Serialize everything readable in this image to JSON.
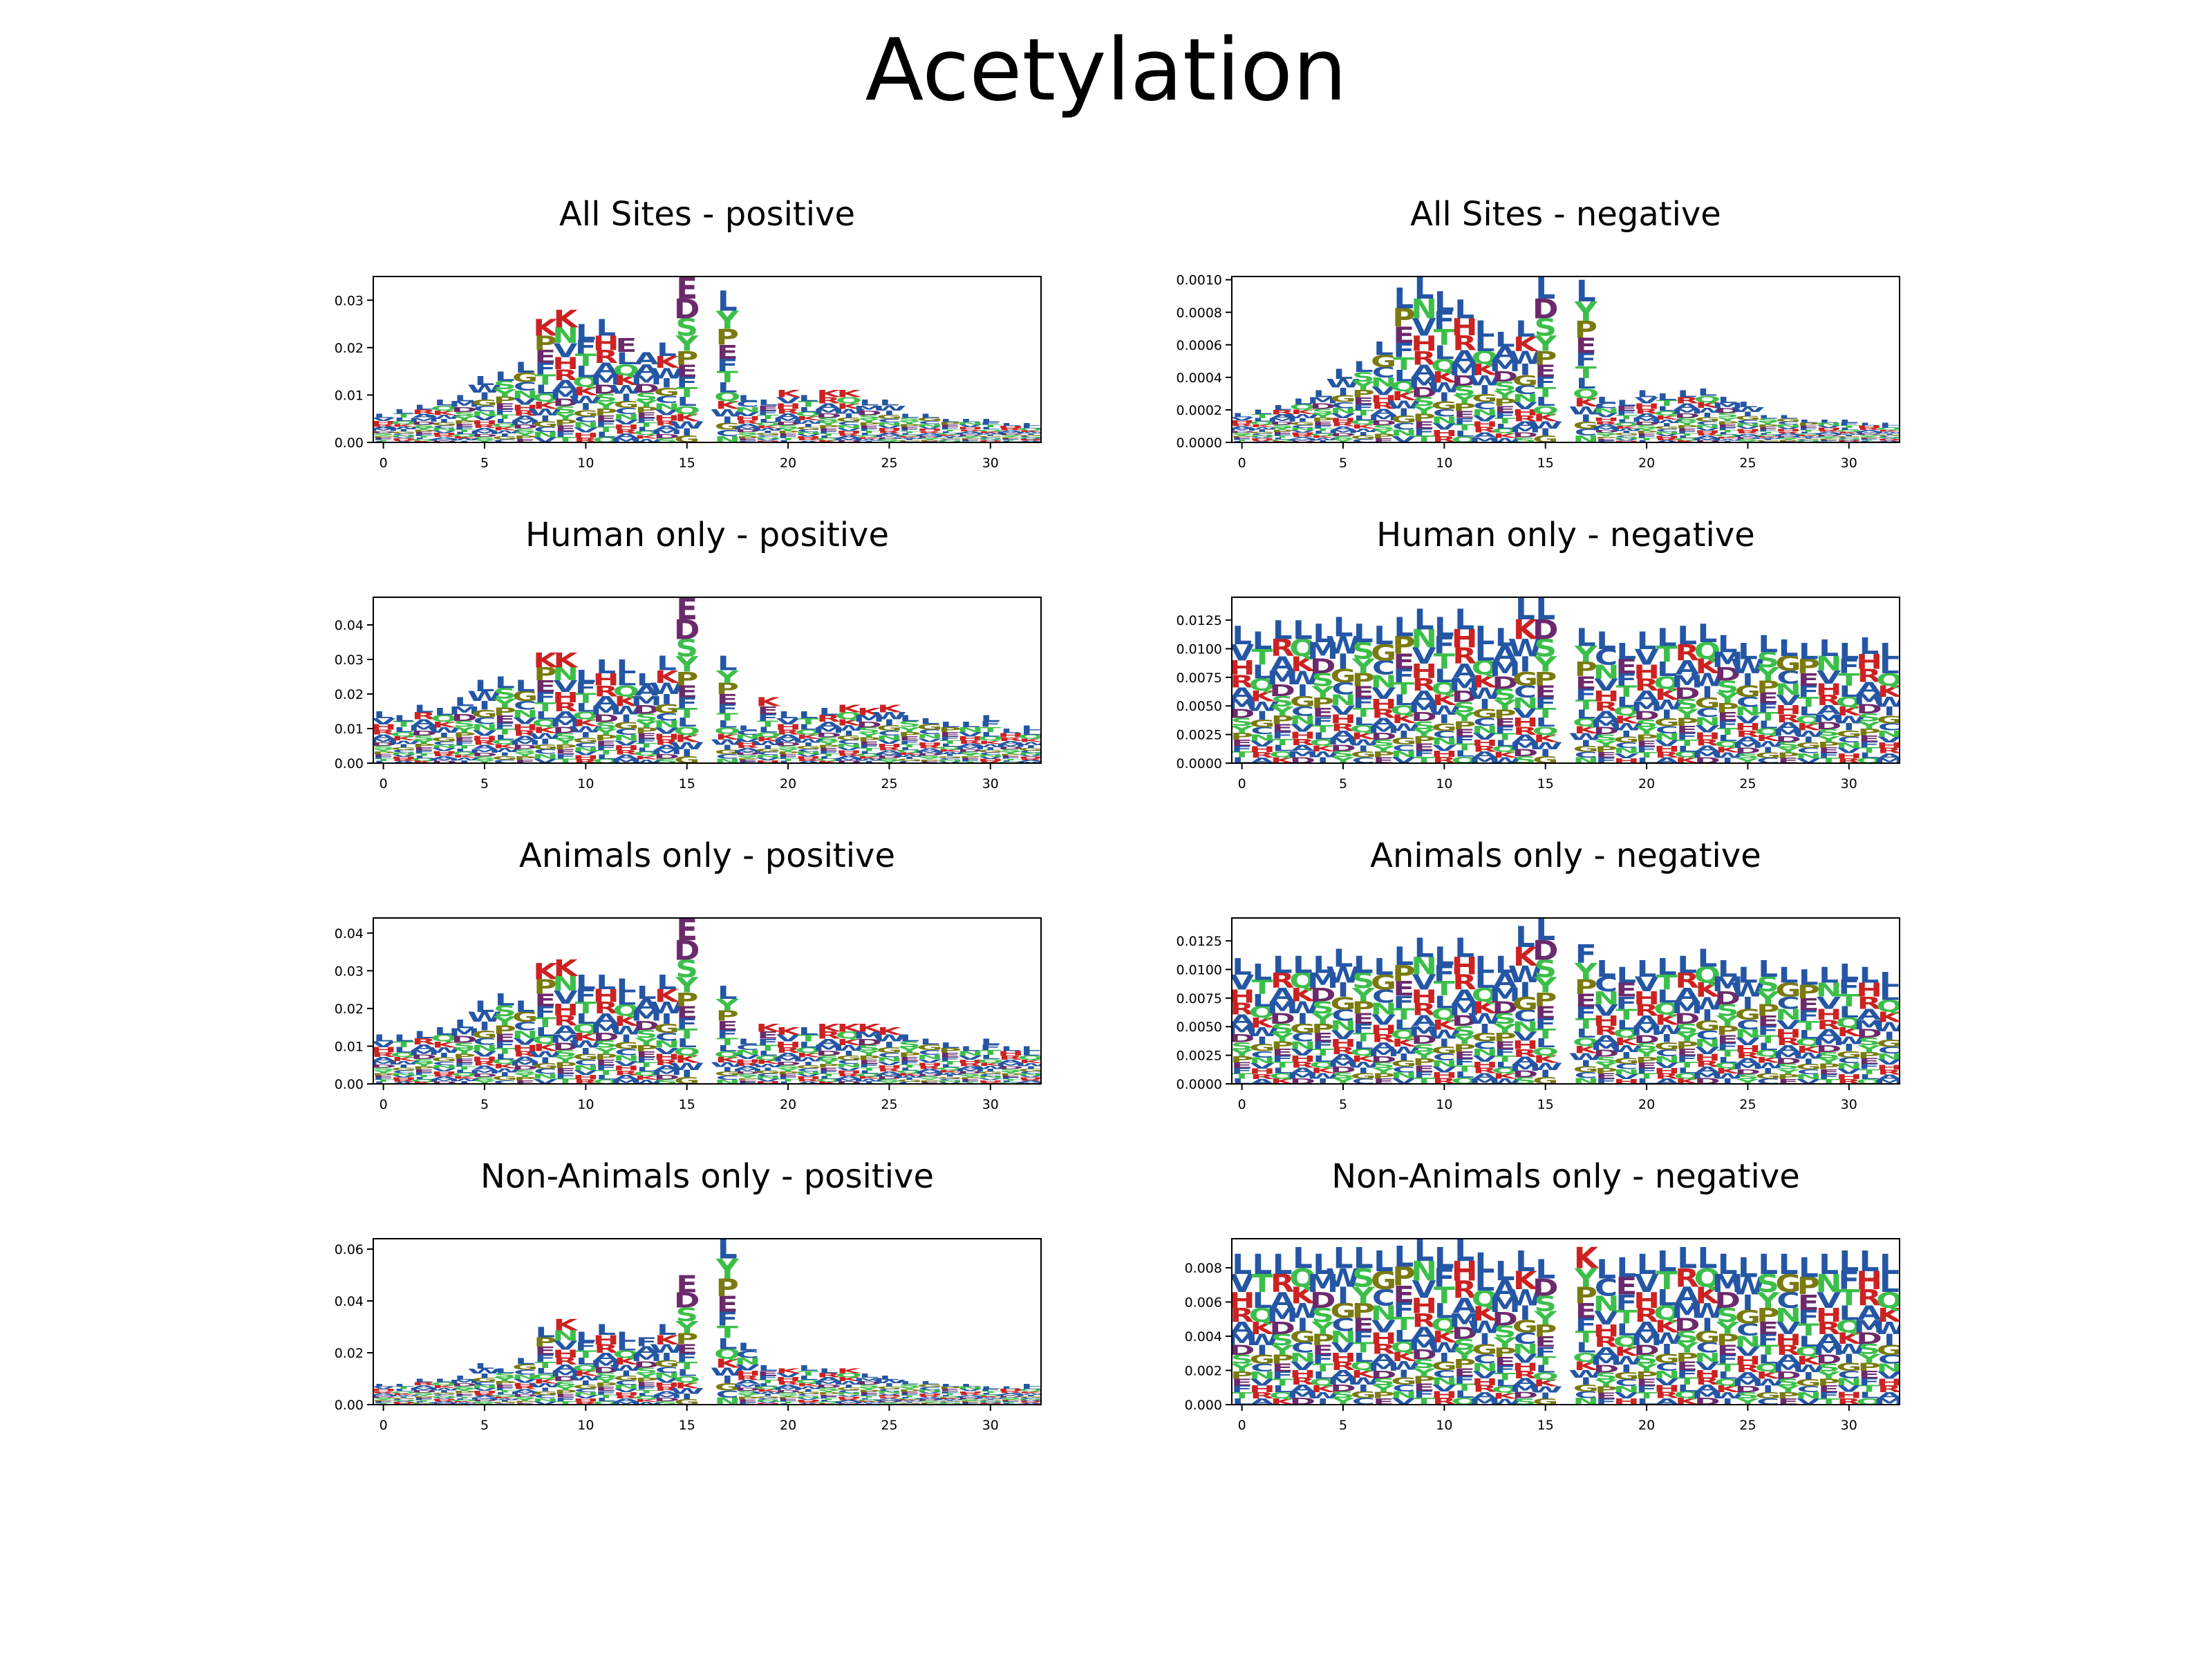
{
  "title": "Acetylation",
  "palette": {
    "K": "#cc2222",
    "R": "#cc2222",
    "H": "#cc2222",
    "D": "#6b2a6b",
    "E": "#6b2a6b",
    "L": "#2456a4",
    "I": "#2456a4",
    "V": "#2456a4",
    "A": "#2456a4",
    "M": "#2456a4",
    "F": "#2456a4",
    "W": "#2456a4",
    "S": "#3cbf4a",
    "T": "#3cbf4a",
    "Y": "#3cbf4a",
    "N": "#3cbf4a",
    "Q": "#3cbf4a",
    "G": "#7a7a10",
    "P": "#7a7a10",
    "C": "#2456a4"
  },
  "chart_data": [
    {
      "type": "bar",
      "subtype": "sequence-logo",
      "title": "All Sites - positive",
      "xlim": [
        -0.5,
        32.5
      ],
      "ylim": [
        0,
        0.035
      ],
      "xticks": [
        "0",
        "5",
        "10",
        "15",
        "20",
        "25",
        "30"
      ],
      "yticks": [
        "0.00",
        "0.01",
        "0.02",
        "0.03"
      ],
      "x": [
        0,
        1,
        2,
        3,
        4,
        5,
        6,
        7,
        8,
        9,
        10,
        11,
        12,
        13,
        14,
        15,
        16,
        17,
        18,
        19,
        20,
        21,
        22,
        23,
        24,
        25,
        26,
        27,
        28,
        29,
        30,
        31,
        32
      ],
      "column_totals": [
        0.006,
        0.007,
        0.008,
        0.009,
        0.01,
        0.014,
        0.015,
        0.017,
        0.026,
        0.028,
        0.025,
        0.026,
        0.022,
        0.019,
        0.021,
        0.035,
        0,
        0.032,
        0.01,
        0.009,
        0.011,
        0.01,
        0.011,
        0.011,
        0.009,
        0.009,
        0.006,
        0.006,
        0.005,
        0.005,
        0.005,
        0.004,
        0.004
      ],
      "top_letters": [
        "L",
        "L",
        "L",
        "L",
        "L",
        "L",
        "L",
        "L",
        "K",
        "K",
        "L",
        "L",
        "E",
        "A",
        "L",
        "E",
        "",
        "L",
        "L",
        "L",
        "K",
        "L",
        "K",
        "K",
        "L",
        "L",
        "L",
        "L",
        "L",
        "L",
        "L",
        "L",
        "L"
      ]
    },
    {
      "type": "bar",
      "subtype": "sequence-logo",
      "title": "All Sites - negative",
      "xlim": [
        -0.5,
        32.5
      ],
      "ylim": [
        0,
        0.00102
      ],
      "xticks": [
        "0",
        "5",
        "10",
        "15",
        "20",
        "25",
        "30"
      ],
      "yticks": [
        "0.0000",
        "0.0002",
        "0.0004",
        "0.0006",
        "0.0008",
        "0.0010"
      ],
      "x": [
        0,
        1,
        2,
        3,
        4,
        5,
        6,
        7,
        8,
        9,
        10,
        11,
        12,
        13,
        14,
        15,
        16,
        17,
        18,
        19,
        20,
        21,
        22,
        23,
        24,
        25,
        26,
        27,
        28,
        29,
        30,
        31,
        32
      ],
      "column_totals": [
        0.00018,
        0.0002,
        0.00023,
        0.00027,
        0.00032,
        0.00045,
        0.0005,
        0.00062,
        0.00095,
        0.00102,
        0.00093,
        0.00088,
        0.00075,
        0.00068,
        0.00075,
        0.00102,
        0,
        0.001,
        0.00028,
        0.00026,
        0.00032,
        0.0003,
        0.00032,
        0.00033,
        0.00028,
        0.00025,
        0.00017,
        0.00017,
        0.00014,
        0.00014,
        0.00014,
        0.00012,
        0.00012
      ],
      "top_letters": [
        "L",
        "L",
        "L",
        "L",
        "L",
        "L",
        "L",
        "L",
        "L",
        "L",
        "L",
        "L",
        "L",
        "L",
        "L",
        "L",
        "",
        "L",
        "L",
        "L",
        "L",
        "L",
        "L",
        "L",
        "L",
        "L",
        "L",
        "L",
        "L",
        "L",
        "L",
        "L",
        "L"
      ]
    },
    {
      "type": "bar",
      "subtype": "sequence-logo",
      "title": "Human only - positive",
      "xlim": [
        -0.5,
        32.5
      ],
      "ylim": [
        0,
        0.048
      ],
      "xticks": [
        "0",
        "5",
        "10",
        "15",
        "20",
        "25",
        "30"
      ],
      "yticks": [
        "0.00",
        "0.01",
        "0.02",
        "0.03",
        "0.04"
      ],
      "x": [
        0,
        1,
        2,
        3,
        4,
        5,
        6,
        7,
        8,
        9,
        10,
        11,
        12,
        13,
        14,
        15,
        16,
        17,
        18,
        19,
        20,
        21,
        22,
        23,
        24,
        25,
        26,
        27,
        28,
        29,
        30,
        31,
        32
      ],
      "column_totals": [
        0.015,
        0.014,
        0.017,
        0.016,
        0.019,
        0.024,
        0.025,
        0.024,
        0.032,
        0.032,
        0.027,
        0.03,
        0.03,
        0.026,
        0.031,
        0.048,
        0,
        0.031,
        0.011,
        0.019,
        0.015,
        0.015,
        0.016,
        0.017,
        0.016,
        0.017,
        0.014,
        0.013,
        0.012,
        0.012,
        0.014,
        0.01,
        0.011
      ],
      "top_letters": [
        "L",
        "L",
        "L",
        "L",
        "L",
        "L",
        "L",
        "L",
        "K",
        "K",
        "L",
        "L",
        "L",
        "L",
        "L",
        "E",
        "",
        "L",
        "L",
        "K",
        "L",
        "L",
        "L",
        "K",
        "K",
        "K",
        "L",
        "L",
        "L",
        "L",
        "L",
        "L",
        "L"
      ]
    },
    {
      "type": "bar",
      "subtype": "sequence-logo",
      "title": "Human only - negative",
      "xlim": [
        -0.5,
        32.5
      ],
      "ylim": [
        0,
        0.0145
      ],
      "xticks": [
        "0",
        "5",
        "10",
        "15",
        "20",
        "25",
        "30"
      ],
      "yticks": [
        "0.0000",
        "0.0025",
        "0.0050",
        "0.0075",
        "0.0100",
        "0.0125"
      ],
      "x": [
        0,
        1,
        2,
        3,
        4,
        5,
        6,
        7,
        8,
        9,
        10,
        11,
        12,
        13,
        14,
        15,
        16,
        17,
        18,
        19,
        20,
        21,
        22,
        23,
        24,
        25,
        26,
        27,
        28,
        29,
        30,
        31,
        32
      ],
      "column_totals": [
        0.012,
        0.0115,
        0.0125,
        0.0125,
        0.0122,
        0.0128,
        0.0122,
        0.012,
        0.0128,
        0.0135,
        0.0128,
        0.0135,
        0.012,
        0.0118,
        0.0145,
        0.0145,
        0,
        0.0118,
        0.0115,
        0.0105,
        0.0115,
        0.0118,
        0.012,
        0.0122,
        0.0112,
        0.0105,
        0.0112,
        0.0108,
        0.0105,
        0.0108,
        0.0105,
        0.011,
        0.0105
      ],
      "top_letters": [
        "L",
        "L",
        "L",
        "L",
        "L",
        "L",
        "L",
        "L",
        "L",
        "L",
        "L",
        "L",
        "L",
        "L",
        "L",
        "L",
        "",
        "L",
        "L",
        "L",
        "L",
        "L",
        "L",
        "L",
        "L",
        "L",
        "L",
        "L",
        "L",
        "L",
        "L",
        "L",
        "L"
      ]
    },
    {
      "type": "bar",
      "subtype": "sequence-logo",
      "title": "Animals only - positive",
      "xlim": [
        -0.5,
        32.5
      ],
      "ylim": [
        0,
        0.044
      ],
      "xticks": [
        "0",
        "5",
        "10",
        "15",
        "20",
        "25",
        "30"
      ],
      "yticks": [
        "0.00",
        "0.01",
        "0.02",
        "0.03",
        "0.04"
      ],
      "x": [
        0,
        1,
        2,
        3,
        4,
        5,
        6,
        7,
        8,
        9,
        10,
        11,
        12,
        13,
        14,
        15,
        16,
        17,
        18,
        19,
        20,
        21,
        22,
        23,
        24,
        25,
        26,
        27,
        28,
        29,
        30,
        31,
        32
      ],
      "column_totals": [
        0.013,
        0.013,
        0.014,
        0.015,
        0.017,
        0.022,
        0.024,
        0.022,
        0.032,
        0.033,
        0.029,
        0.029,
        0.028,
        0.026,
        0.029,
        0.044,
        0,
        0.026,
        0.012,
        0.016,
        0.015,
        0.015,
        0.016,
        0.016,
        0.016,
        0.015,
        0.013,
        0.012,
        0.011,
        0.01,
        0.012,
        0.01,
        0.01
      ],
      "top_letters": [
        "L",
        "L",
        "L",
        "L",
        "L",
        "L",
        "L",
        "L",
        "K",
        "K",
        "L",
        "L",
        "L",
        "L",
        "L",
        "E",
        "",
        "L",
        "L",
        "K",
        "K",
        "L",
        "K",
        "K",
        "K",
        "K",
        "L",
        "L",
        "L",
        "L",
        "L",
        "L",
        "L"
      ]
    },
    {
      "type": "bar",
      "subtype": "sequence-logo",
      "title": "Animals only - negative",
      "xlim": [
        -0.5,
        32.5
      ],
      "ylim": [
        0,
        0.0145
      ],
      "xticks": [
        "0",
        "5",
        "10",
        "15",
        "20",
        "25",
        "30"
      ],
      "yticks": [
        "0.0000",
        "0.0025",
        "0.0050",
        "0.0075",
        "0.0100",
        "0.0125"
      ],
      "x": [
        0,
        1,
        2,
        3,
        4,
        5,
        6,
        7,
        8,
        9,
        10,
        11,
        12,
        13,
        14,
        15,
        16,
        17,
        18,
        19,
        20,
        21,
        22,
        23,
        24,
        25,
        26,
        27,
        28,
        29,
        30,
        31,
        32
      ],
      "column_totals": [
        0.011,
        0.0105,
        0.0112,
        0.0112,
        0.0112,
        0.0118,
        0.0112,
        0.011,
        0.012,
        0.0128,
        0.012,
        0.0128,
        0.0112,
        0.0112,
        0.0138,
        0.0145,
        0,
        0.0122,
        0.0108,
        0.0102,
        0.0108,
        0.011,
        0.0112,
        0.0118,
        0.0108,
        0.0102,
        0.0108,
        0.0102,
        0.01,
        0.0102,
        0.0105,
        0.0102,
        0.0098
      ],
      "top_letters": [
        "L",
        "L",
        "L",
        "L",
        "L",
        "L",
        "L",
        "L",
        "L",
        "L",
        "L",
        "L",
        "L",
        "L",
        "L",
        "L",
        "",
        "F",
        "L",
        "L",
        "L",
        "L",
        "L",
        "L",
        "L",
        "L",
        "L",
        "L",
        "L",
        "L",
        "L",
        "L",
        "L"
      ]
    },
    {
      "type": "bar",
      "subtype": "sequence-logo",
      "title": "Non-Animals only - positive",
      "xlim": [
        -0.5,
        32.5
      ],
      "ylim": [
        0,
        0.064
      ],
      "xticks": [
        "0",
        "5",
        "10",
        "15",
        "20",
        "25",
        "30"
      ],
      "yticks": [
        "0.00",
        "0.02",
        "0.04",
        "0.06"
      ],
      "x": [
        0,
        1,
        2,
        3,
        4,
        5,
        6,
        7,
        8,
        9,
        10,
        11,
        12,
        13,
        14,
        15,
        16,
        17,
        18,
        19,
        20,
        21,
        22,
        23,
        24,
        25,
        26,
        27,
        28,
        29,
        30,
        31,
        32
      ],
      "column_totals": [
        0.008,
        0.008,
        0.01,
        0.01,
        0.011,
        0.016,
        0.014,
        0.018,
        0.03,
        0.033,
        0.028,
        0.031,
        0.028,
        0.026,
        0.031,
        0.05,
        0,
        0.065,
        0.024,
        0.015,
        0.014,
        0.015,
        0.014,
        0.014,
        0.012,
        0.011,
        0.009,
        0.009,
        0.008,
        0.008,
        0.007,
        0.007,
        0.008
      ],
      "top_letters": [
        "L",
        "L",
        "L",
        "L",
        "L",
        "L",
        "L",
        "L",
        "L",
        "K",
        "L",
        "L",
        "L",
        "F",
        "L",
        "E",
        "",
        "L",
        "L",
        "L",
        "K",
        "L",
        "L",
        "K",
        "L",
        "L",
        "L",
        "L",
        "L",
        "L",
        "L",
        "L",
        "L"
      ]
    },
    {
      "type": "bar",
      "subtype": "sequence-logo",
      "title": "Non-Animals only - negative",
      "xlim": [
        -0.5,
        32.5
      ],
      "ylim": [
        0,
        0.0097
      ],
      "xticks": [
        "0",
        "5",
        "10",
        "15",
        "20",
        "25",
        "30"
      ],
      "yticks": [
        "0.000",
        "0.002",
        "0.004",
        "0.006",
        "0.008"
      ],
      "x": [
        0,
        1,
        2,
        3,
        4,
        5,
        6,
        7,
        8,
        9,
        10,
        11,
        12,
        13,
        14,
        15,
        16,
        17,
        18,
        19,
        20,
        21,
        22,
        23,
        24,
        25,
        26,
        27,
        28,
        29,
        30,
        31,
        32
      ],
      "column_totals": [
        0.0088,
        0.0088,
        0.0088,
        0.0092,
        0.0088,
        0.0092,
        0.0092,
        0.009,
        0.0093,
        0.0097,
        0.0092,
        0.0097,
        0.0089,
        0.0084,
        0.009,
        0.0085,
        0,
        0.0092,
        0.0085,
        0.0086,
        0.0088,
        0.009,
        0.0092,
        0.0092,
        0.0088,
        0.0086,
        0.0088,
        0.0088,
        0.0086,
        0.0088,
        0.009,
        0.009,
        0.0088
      ],
      "top_letters": [
        "L",
        "L",
        "L",
        "L",
        "L",
        "L",
        "L",
        "L",
        "L",
        "L",
        "L",
        "L",
        "L",
        "L",
        "L",
        "L",
        "",
        "K",
        "L",
        "L",
        "L",
        "L",
        "L",
        "L",
        "L",
        "L",
        "L",
        "L",
        "L",
        "L",
        "L",
        "L",
        "L"
      ]
    }
  ]
}
